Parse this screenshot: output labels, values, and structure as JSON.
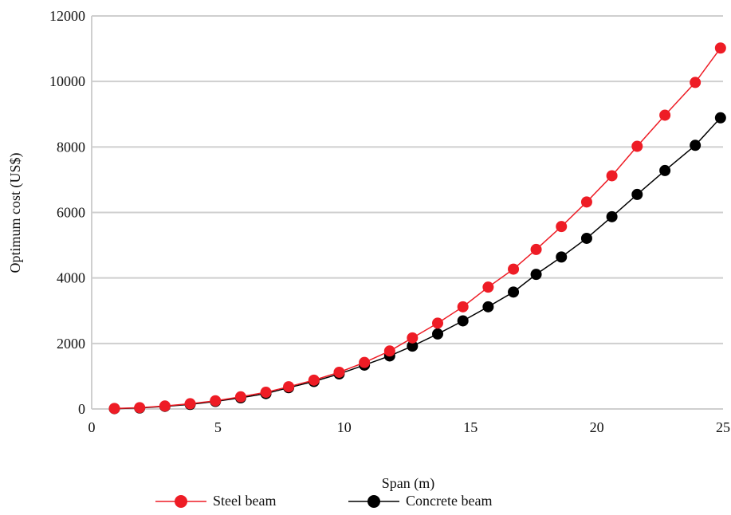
{
  "chart_data": {
    "type": "line",
    "title": "",
    "xlabel": "Span (m)",
    "ylabel": "Optimum cost (US$)",
    "xlim": [
      0,
      25
    ],
    "ylim": [
      0,
      12000
    ],
    "xticks": [
      0,
      5,
      10,
      15,
      20,
      25
    ],
    "yticks": [
      0,
      2000,
      4000,
      6000,
      8000,
      10000,
      12000
    ],
    "grid": "horizontal",
    "legend_position": "bottom",
    "x": [
      0.9,
      1.9,
      2.9,
      3.9,
      4.9,
      5.9,
      6.9,
      7.8,
      8.8,
      9.8,
      10.8,
      11.8,
      12.7,
      13.7,
      14.7,
      15.7,
      16.7,
      17.6,
      18.6,
      19.6,
      20.6,
      21.6,
      22.7,
      23.9,
      24.9
    ],
    "series": [
      {
        "name": "Steel beam",
        "color": "#ee1c25",
        "marker": "circle",
        "values": [
          15,
          40,
          90,
          160,
          250,
          370,
          510,
          680,
          880,
          1120,
          1420,
          1770,
          2170,
          2620,
          3120,
          3720,
          4270,
          4870,
          5570,
          6320,
          7120,
          8020,
          8970,
          9970,
          11020
        ]
      },
      {
        "name": "Concrete beam",
        "color": "#000000",
        "marker": "circle",
        "values": [
          10,
          30,
          80,
          140,
          230,
          340,
          470,
          650,
          840,
          1070,
          1340,
          1620,
          1920,
          2290,
          2690,
          3120,
          3570,
          4110,
          4640,
          5210,
          5870,
          6550,
          7280,
          8050,
          8890
        ]
      }
    ]
  }
}
